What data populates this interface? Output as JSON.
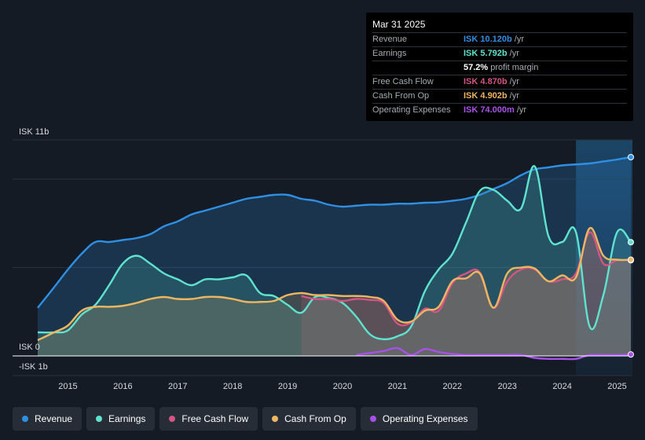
{
  "chart_data": {
    "type": "area",
    "y_top_label": "ISK 11b",
    "y_zero_label": "ISK 0",
    "y_bottom_label": "-ISK 1b",
    "ylim": [
      -1,
      11
    ],
    "xlim": [
      2014.45,
      2025.25
    ],
    "forecast_start": 2024.25,
    "x_ticks": [
      {
        "label": "2015",
        "x": 2015
      },
      {
        "label": "2016",
        "x": 2016
      },
      {
        "label": "2017",
        "x": 2017
      },
      {
        "label": "2018",
        "x": 2018
      },
      {
        "label": "2019",
        "x": 2019
      },
      {
        "label": "2020",
        "x": 2020
      },
      {
        "label": "2021",
        "x": 2021
      },
      {
        "label": "2022",
        "x": 2022
      },
      {
        "label": "2023",
        "x": 2023
      },
      {
        "label": "2024",
        "x": 2024
      },
      {
        "label": "2025",
        "x": 2025
      }
    ],
    "series": [
      {
        "name": "Revenue",
        "color": "#2f8fe3",
        "fill": true,
        "points": [
          [
            2014.45,
            2.45
          ],
          [
            2014.75,
            3.5
          ],
          [
            2015.0,
            4.4
          ],
          [
            2015.25,
            5.2
          ],
          [
            2015.5,
            5.8
          ],
          [
            2015.75,
            5.8
          ],
          [
            2016.0,
            5.9
          ],
          [
            2016.25,
            6.0
          ],
          [
            2016.5,
            6.2
          ],
          [
            2016.75,
            6.6
          ],
          [
            2017.0,
            6.85
          ],
          [
            2017.25,
            7.2
          ],
          [
            2017.5,
            7.4
          ],
          [
            2017.75,
            7.6
          ],
          [
            2018.0,
            7.8
          ],
          [
            2018.25,
            8.0
          ],
          [
            2018.5,
            8.1
          ],
          [
            2018.75,
            8.2
          ],
          [
            2019.0,
            8.2
          ],
          [
            2019.25,
            8.0
          ],
          [
            2019.5,
            7.9
          ],
          [
            2019.75,
            7.7
          ],
          [
            2020.0,
            7.6
          ],
          [
            2020.25,
            7.65
          ],
          [
            2020.5,
            7.7
          ],
          [
            2020.75,
            7.7
          ],
          [
            2021.0,
            7.75
          ],
          [
            2021.25,
            7.75
          ],
          [
            2021.5,
            7.8
          ],
          [
            2021.75,
            7.82
          ],
          [
            2022.0,
            7.9
          ],
          [
            2022.25,
            8.0
          ],
          [
            2022.5,
            8.2
          ],
          [
            2022.75,
            8.5
          ],
          [
            2023.0,
            8.8
          ],
          [
            2023.25,
            9.2
          ],
          [
            2023.5,
            9.5
          ],
          [
            2023.75,
            9.6
          ],
          [
            2024.0,
            9.7
          ],
          [
            2024.25,
            9.75
          ],
          [
            2024.5,
            9.8
          ],
          [
            2024.75,
            9.9
          ],
          [
            2025.0,
            10.0
          ],
          [
            2025.25,
            10.12
          ]
        ]
      },
      {
        "name": "Earnings",
        "color": "#5fe3cf",
        "fill": true,
        "points": [
          [
            2014.45,
            1.2
          ],
          [
            2014.75,
            1.2
          ],
          [
            2015.0,
            1.3
          ],
          [
            2015.25,
            2.1
          ],
          [
            2015.5,
            2.6
          ],
          [
            2015.75,
            3.6
          ],
          [
            2016.0,
            4.7
          ],
          [
            2016.25,
            5.1
          ],
          [
            2016.5,
            4.7
          ],
          [
            2016.75,
            4.2
          ],
          [
            2017.0,
            3.9
          ],
          [
            2017.25,
            3.6
          ],
          [
            2017.5,
            3.9
          ],
          [
            2017.75,
            3.9
          ],
          [
            2018.0,
            4.0
          ],
          [
            2018.25,
            4.1
          ],
          [
            2018.5,
            3.2
          ],
          [
            2018.75,
            3.05
          ],
          [
            2019.0,
            2.6
          ],
          [
            2019.25,
            2.2
          ],
          [
            2019.5,
            3.0
          ],
          [
            2019.75,
            2.95
          ],
          [
            2020.0,
            2.7
          ],
          [
            2020.25,
            2.0
          ],
          [
            2020.5,
            1.1
          ],
          [
            2020.75,
            0.85
          ],
          [
            2021.0,
            1.0
          ],
          [
            2021.25,
            1.5
          ],
          [
            2021.5,
            3.3
          ],
          [
            2021.75,
            4.4
          ],
          [
            2022.0,
            5.2
          ],
          [
            2022.25,
            6.8
          ],
          [
            2022.5,
            8.4
          ],
          [
            2022.75,
            8.45
          ],
          [
            2023.0,
            7.9
          ],
          [
            2023.25,
            7.5
          ],
          [
            2023.5,
            9.65
          ],
          [
            2023.75,
            6.1
          ],
          [
            2024.0,
            5.8
          ],
          [
            2024.25,
            6.3
          ],
          [
            2024.5,
            1.5
          ],
          [
            2024.75,
            3.1
          ],
          [
            2025.0,
            6.3
          ],
          [
            2025.25,
            5.79
          ]
        ]
      },
      {
        "name": "Free Cash Flow",
        "color": "#d35584",
        "fill": true,
        "start": 2019.25,
        "points": [
          [
            2019.25,
            3.05
          ],
          [
            2019.5,
            2.9
          ],
          [
            2019.75,
            2.9
          ],
          [
            2020.0,
            2.8
          ],
          [
            2020.25,
            2.9
          ],
          [
            2020.5,
            2.85
          ],
          [
            2020.75,
            2.7
          ],
          [
            2021.0,
            1.65
          ],
          [
            2021.25,
            1.7
          ],
          [
            2021.5,
            2.4
          ],
          [
            2021.75,
            2.3
          ],
          [
            2022.0,
            3.7
          ],
          [
            2022.25,
            4.2
          ],
          [
            2022.5,
            4.25
          ],
          [
            2022.75,
            2.45
          ],
          [
            2023.0,
            3.8
          ],
          [
            2023.25,
            4.4
          ],
          [
            2023.5,
            4.4
          ],
          [
            2023.75,
            3.8
          ],
          [
            2024.0,
            3.9
          ],
          [
            2024.25,
            4.2
          ],
          [
            2024.5,
            6.3
          ],
          [
            2024.75,
            4.7
          ],
          [
            2025.0,
            4.87
          ],
          [
            2025.25,
            4.87
          ]
        ]
      },
      {
        "name": "Cash From Op",
        "color": "#efb661",
        "fill": true,
        "points": [
          [
            2014.45,
            0.8
          ],
          [
            2014.75,
            1.2
          ],
          [
            2015.0,
            1.55
          ],
          [
            2015.25,
            2.3
          ],
          [
            2015.5,
            2.5
          ],
          [
            2015.75,
            2.5
          ],
          [
            2016.0,
            2.55
          ],
          [
            2016.25,
            2.7
          ],
          [
            2016.5,
            2.9
          ],
          [
            2016.75,
            3.0
          ],
          [
            2017.0,
            2.9
          ],
          [
            2017.25,
            2.9
          ],
          [
            2017.5,
            3.0
          ],
          [
            2017.75,
            3.0
          ],
          [
            2018.0,
            2.9
          ],
          [
            2018.25,
            2.75
          ],
          [
            2018.5,
            2.75
          ],
          [
            2018.75,
            2.8
          ],
          [
            2019.0,
            3.1
          ],
          [
            2019.25,
            3.2
          ],
          [
            2019.5,
            3.1
          ],
          [
            2019.75,
            3.1
          ],
          [
            2020.0,
            3.05
          ],
          [
            2020.25,
            3.05
          ],
          [
            2020.5,
            3.0
          ],
          [
            2020.75,
            2.8
          ],
          [
            2021.0,
            1.85
          ],
          [
            2021.25,
            1.75
          ],
          [
            2021.5,
            2.3
          ],
          [
            2021.75,
            2.5
          ],
          [
            2022.0,
            3.8
          ],
          [
            2022.25,
            3.95
          ],
          [
            2022.5,
            4.2
          ],
          [
            2022.75,
            2.45
          ],
          [
            2023.0,
            4.2
          ],
          [
            2023.25,
            4.5
          ],
          [
            2023.5,
            4.45
          ],
          [
            2023.75,
            3.8
          ],
          [
            2024.0,
            4.1
          ],
          [
            2024.25,
            4.0
          ],
          [
            2024.5,
            6.5
          ],
          [
            2024.75,
            5.1
          ],
          [
            2025.0,
            4.9
          ],
          [
            2025.25,
            4.9
          ]
        ]
      },
      {
        "name": "Operating Expenses",
        "color": "#a851e8",
        "fill": false,
        "start": 2020.25,
        "points": [
          [
            2020.25,
            0.05
          ],
          [
            2020.5,
            0.15
          ],
          [
            2020.75,
            0.25
          ],
          [
            2021.0,
            0.4
          ],
          [
            2021.25,
            0.05
          ],
          [
            2021.5,
            0.35
          ],
          [
            2021.75,
            0.2
          ],
          [
            2022.0,
            0.1
          ],
          [
            2022.25,
            0.05
          ],
          [
            2022.5,
            0.05
          ],
          [
            2022.75,
            0.05
          ],
          [
            2023.0,
            0.05
          ],
          [
            2023.25,
            0.05
          ],
          [
            2023.5,
            -0.1
          ],
          [
            2023.75,
            -0.15
          ],
          [
            2024.0,
            -0.15
          ],
          [
            2024.25,
            -0.15
          ],
          [
            2024.5,
            0.05
          ],
          [
            2024.75,
            0.05
          ],
          [
            2025.0,
            0.05
          ],
          [
            2025.25,
            0.074
          ]
        ]
      }
    ]
  },
  "tooltip": {
    "date": "Mar 31 2025",
    "rows": [
      {
        "label": "Revenue",
        "value": "ISK 10.120b",
        "unit": "/yr",
        "color": "#2f8fe3"
      },
      {
        "label": "Earnings",
        "value": "ISK 5.792b",
        "unit": "/yr",
        "color": "#5fe3cf"
      },
      {
        "label": "",
        "value": "57.2%",
        "unit": "profit margin",
        "color": "#ffffff"
      },
      {
        "label": "Free Cash Flow",
        "value": "ISK 4.870b",
        "unit": "/yr",
        "color": "#d35584"
      },
      {
        "label": "Cash From Op",
        "value": "ISK 4.902b",
        "unit": "/yr",
        "color": "#efb661"
      },
      {
        "label": "Operating Expenses",
        "value": "ISK 74.000m",
        "unit": "/yr",
        "color": "#a851e8"
      }
    ]
  },
  "legend": [
    {
      "label": "Revenue",
      "color": "#2f8fe3"
    },
    {
      "label": "Earnings",
      "color": "#5fe3cf"
    },
    {
      "label": "Free Cash Flow",
      "color": "#d35584"
    },
    {
      "label": "Cash From Op",
      "color": "#efb661"
    },
    {
      "label": "Operating Expenses",
      "color": "#a851e8"
    }
  ]
}
